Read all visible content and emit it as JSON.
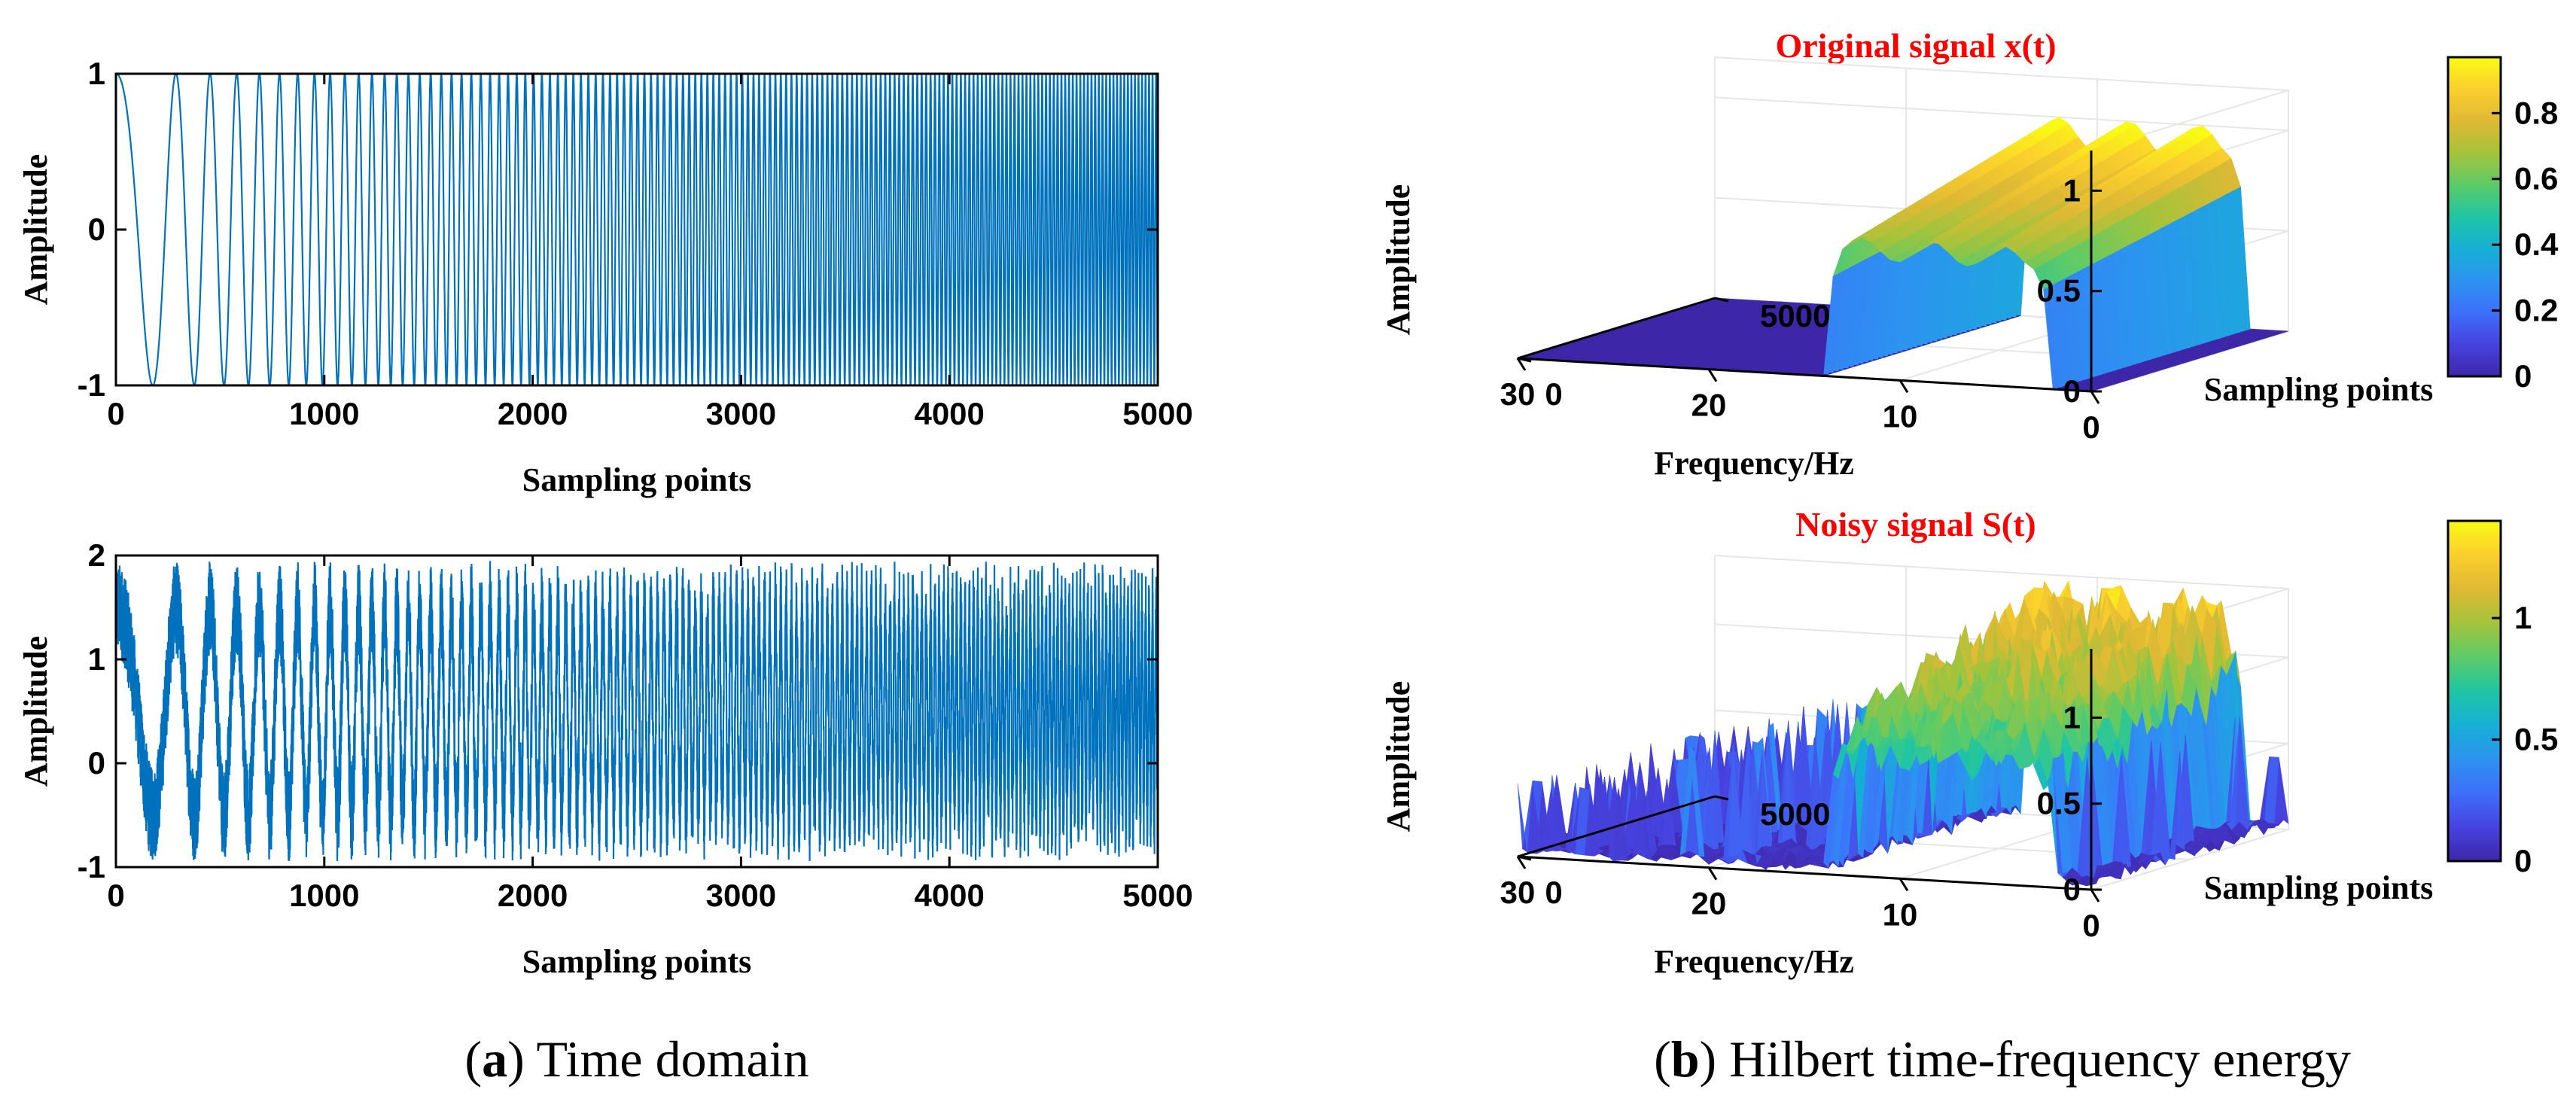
{
  "colors": {
    "signal": "#0072bd",
    "title_red": "#ff0000",
    "axis": "#000000",
    "grid": "#e6e6e6",
    "colormap": [
      "#3e26a8",
      "#4743e0",
      "#3e6ffb",
      "#2c93f0",
      "#16b0d4",
      "#1fc5a4",
      "#5dcb67",
      "#a5c33b",
      "#dfb934",
      "#fbcf2d",
      "#f9fb14"
    ]
  },
  "captions": {
    "a_letter": "a",
    "a_text": "Time domain",
    "b_letter": "b",
    "b_text": "Hilbert time-frequency energy"
  },
  "chart_data": [
    {
      "type": "line",
      "panel": "a-top",
      "series_description": "linear chirp, unit amplitude",
      "x_range": [
        0,
        5000
      ],
      "ylim": [
        -1,
        1
      ],
      "xticks": [
        "0",
        "1000",
        "2000",
        "3000",
        "4000",
        "5000"
      ],
      "yticks": [
        "-1",
        "0",
        "1"
      ],
      "xlabel": "Sampling points",
      "ylabel": "Amplitude",
      "signal": {
        "amplitude": 1,
        "freq_start_cycles_per_sample": 0.0018,
        "freq_end_cycles_per_sample": 0.06,
        "noise": 0
      }
    },
    {
      "type": "line",
      "panel": "a-bottom",
      "x_range": [
        0,
        5000
      ],
      "ylim": [
        -1,
        2
      ],
      "xticks": [
        "0",
        "1000",
        "2000",
        "3000",
        "4000",
        "5000"
      ],
      "yticks": [
        "-1",
        "0",
        "1",
        "2"
      ],
      "xlabel": "Sampling points",
      "ylabel": "Amplitude",
      "signal": {
        "amplitude": 1,
        "offset": 0.5,
        "freq_start_cycles_per_sample": 0.0018,
        "freq_end_cycles_per_sample": 0.06,
        "noise": 0.45
      }
    },
    {
      "type": "surface",
      "panel": "b-top",
      "title": "Original signal x(t)",
      "xlabel": "Frequency/Hz",
      "ylabel": "Sampling points",
      "zlabel": "Amplitude",
      "x_ticks": [
        "30",
        "20",
        "10",
        "0"
      ],
      "y_ticks": [
        "0",
        "5000"
      ],
      "z_ticks": [
        "0",
        "0.5",
        "1"
      ],
      "x_range": [
        0,
        30
      ],
      "y_range": [
        0,
        5000
      ],
      "z_range": [
        0,
        1.2
      ],
      "colorbar_ticks": [
        "0",
        "0.2",
        "0.4",
        "0.6",
        "0.8"
      ],
      "colorbar_range": [
        0,
        0.97
      ],
      "ridge": {
        "freq_band_hz": [
          2,
          14
        ],
        "peak_amplitude": 1.0
      }
    },
    {
      "type": "surface",
      "panel": "b-bottom",
      "title": "Noisy signal S(t)",
      "xlabel": "Frequency/Hz",
      "ylabel": "Sampling points",
      "zlabel": "Amplitude",
      "x_ticks": [
        "30",
        "20",
        "10",
        "0"
      ],
      "y_ticks": [
        "0",
        "5000"
      ],
      "z_ticks": [
        "0",
        "0.5",
        "1"
      ],
      "x_range": [
        0,
        30
      ],
      "y_range": [
        0,
        5000
      ],
      "z_range": [
        0,
        1.4
      ],
      "colorbar_ticks": [
        "0",
        "0.5",
        "1"
      ],
      "colorbar_range": [
        0,
        1.4
      ],
      "ridge": {
        "freq_band_hz": [
          2,
          14
        ],
        "peak_amplitude": 1.3,
        "noise_peaks": 0.45
      }
    }
  ]
}
